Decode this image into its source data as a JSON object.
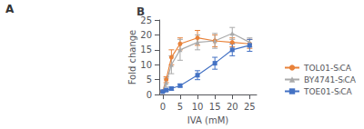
{
  "chart_data": {
    "type": "line",
    "title": "B",
    "annotations": [
      "A"
    ],
    "x": [
      0,
      1,
      2.5,
      5,
      10,
      15,
      20,
      25
    ],
    "series": [
      {
        "name": "TOL01-SₗCA",
        "color": "#E8823A",
        "marker": "circle",
        "values": [
          1.0,
          5.0,
          12.5,
          17.0,
          19.0,
          18.0,
          17.5,
          17.0
        ],
        "yerr": [
          0.2,
          1.0,
          2.5,
          2.0,
          2.5,
          2.0,
          1.5,
          1.5
        ]
      },
      {
        "name": "BY4741-SₗCA",
        "color": "#AAAAAA",
        "marker": "triangle",
        "values": [
          1.0,
          4.0,
          10.0,
          15.0,
          17.5,
          18.0,
          20.5,
          17.5
        ],
        "yerr": [
          0.2,
          1.5,
          3.0,
          3.5,
          2.5,
          2.5,
          2.0,
          1.5
        ]
      },
      {
        "name": "TOE01-SₗCA",
        "color": "#4472C4",
        "marker": "square",
        "values": [
          1.0,
          1.5,
          2.0,
          3.0,
          6.5,
          10.5,
          15.0,
          16.5
        ],
        "yerr": [
          0.2,
          0.3,
          0.5,
          0.5,
          1.5,
          2.0,
          2.0,
          2.0
        ]
      }
    ],
    "xlabel": "IVA (mM)",
    "ylabel": "Fold change",
    "xlim": [
      -1,
      27
    ],
    "ylim": [
      0,
      25
    ],
    "xticks": [
      0,
      5,
      10,
      15,
      20,
      25
    ],
    "yticks": [
      0,
      5,
      10,
      15,
      20,
      25
    ],
    "grid": false,
    "legend": "lower right"
  }
}
